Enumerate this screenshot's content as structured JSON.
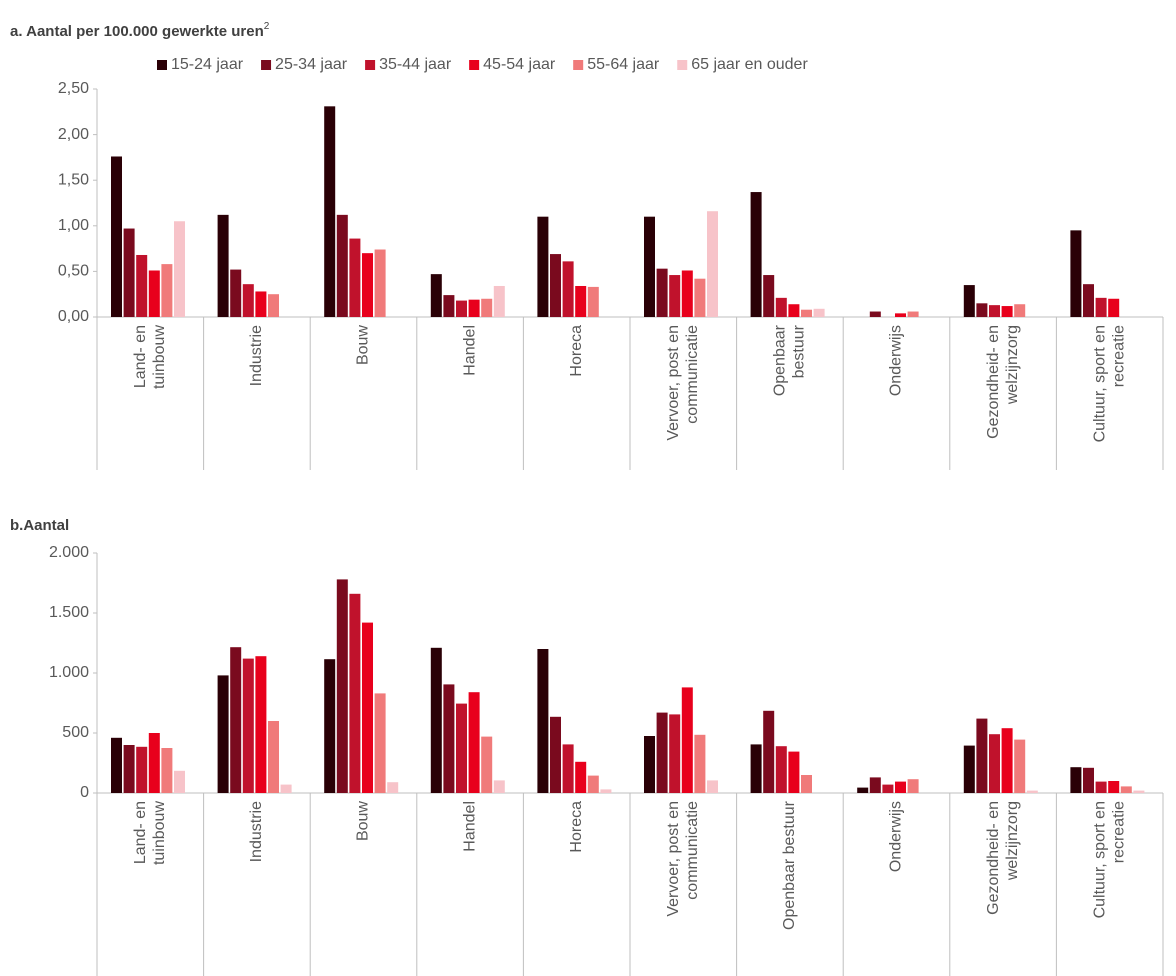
{
  "chart_data": [
    {
      "type": "bar",
      "title": "a. Aantal per 100.000 gewerkte uren",
      "title_superscript": "2",
      "categories": [
        [
          "Land- en",
          "tuinbouw"
        ],
        [
          "Industrie"
        ],
        [
          "Bouw"
        ],
        [
          "Handel"
        ],
        [
          "Horeca"
        ],
        [
          "Vervoer, post en",
          "communicatie"
        ],
        [
          "Openbaar",
          "bestuur"
        ],
        [
          "Onderwijs"
        ],
        [
          "Gezondheid- en",
          "welzijnzorg"
        ],
        [
          "Cultuur, sport en",
          "recreatie"
        ]
      ],
      "series": [
        {
          "name": "15-24 jaar",
          "color": "#2a0006",
          "values": [
            1.76,
            1.12,
            2.31,
            0.47,
            1.1,
            1.1,
            1.37,
            null,
            0.35,
            0.95
          ]
        },
        {
          "name": "25-34 jaar",
          "color": "#7a0a1e",
          "values": [
            0.97,
            0.52,
            1.12,
            0.24,
            0.69,
            0.53,
            0.46,
            0.06,
            0.15,
            0.36
          ]
        },
        {
          "name": "35-44 jaar",
          "color": "#c0122c",
          "values": [
            0.68,
            0.36,
            0.86,
            0.18,
            0.61,
            0.46,
            0.21,
            null,
            0.13,
            0.21
          ]
        },
        {
          "name": "45-54 jaar",
          "color": "#e8001c",
          "values": [
            0.51,
            0.28,
            0.7,
            0.19,
            0.34,
            0.51,
            0.14,
            0.04,
            0.12,
            0.2
          ]
        },
        {
          "name": "55-64 jaar",
          "color": "#f07a7a",
          "values": [
            0.58,
            0.25,
            0.74,
            0.2,
            0.33,
            0.42,
            0.08,
            0.06,
            0.14,
            null
          ]
        },
        {
          "name": "65 jaar en ouder",
          "color": "#f7c3c9",
          "values": [
            1.05,
            null,
            null,
            0.34,
            null,
            1.16,
            0.09,
            null,
            null,
            null
          ]
        }
      ],
      "ylim": [
        0,
        2.5
      ],
      "yticks": [
        {
          "value": 0,
          "label": "0,00"
        },
        {
          "value": 0.5,
          "label": "0,50"
        },
        {
          "value": 1,
          "label": "1,00"
        },
        {
          "value": 1.5,
          "label": "1,50"
        },
        {
          "value": 2,
          "label": "2,00"
        },
        {
          "value": 2.5,
          "label": "2,50"
        }
      ],
      "legend": "top"
    },
    {
      "type": "bar",
      "title": "b.Aantal",
      "categories": [
        [
          "Land- en",
          "tuinbouw"
        ],
        [
          "Industrie"
        ],
        [
          "Bouw"
        ],
        [
          "Handel"
        ],
        [
          "Horeca"
        ],
        [
          "Vervoer, post en",
          "communicatie"
        ],
        [
          "Openbaar bestuur"
        ],
        [
          "Onderwijs"
        ],
        [
          "Gezondheid- en",
          "welzijnzorg"
        ],
        [
          "Cultuur, sport en",
          "recreatie"
        ]
      ],
      "series": [
        {
          "color": "#2a0006",
          "values": [
            460,
            980,
            1115,
            1210,
            1200,
            475,
            405,
            45,
            395,
            215
          ]
        },
        {
          "color": "#7a0a1e",
          "values": [
            400,
            1215,
            1780,
            905,
            635,
            670,
            685,
            130,
            620,
            210
          ]
        },
        {
          "color": "#c0122c",
          "values": [
            385,
            1120,
            1660,
            745,
            405,
            655,
            390,
            70,
            490,
            95
          ]
        },
        {
          "color": "#e8001c",
          "values": [
            500,
            1140,
            1420,
            840,
            260,
            880,
            345,
            95,
            540,
            100
          ]
        },
        {
          "color": "#f07a7a",
          "values": [
            375,
            600,
            830,
            470,
            145,
            485,
            150,
            115,
            445,
            55
          ]
        },
        {
          "color": "#f7c3c9",
          "values": [
            185,
            70,
            90,
            105,
            30,
            105,
            null,
            null,
            20,
            20
          ]
        }
      ],
      "ylim": [
        0,
        2000
      ],
      "yticks": [
        0,
        500,
        {
          "value": 1000,
          "label": "1.000"
        },
        {
          "value": 1500,
          "label": "1.500"
        },
        {
          "value": 2000,
          "label": "2.000"
        }
      ]
    }
  ]
}
